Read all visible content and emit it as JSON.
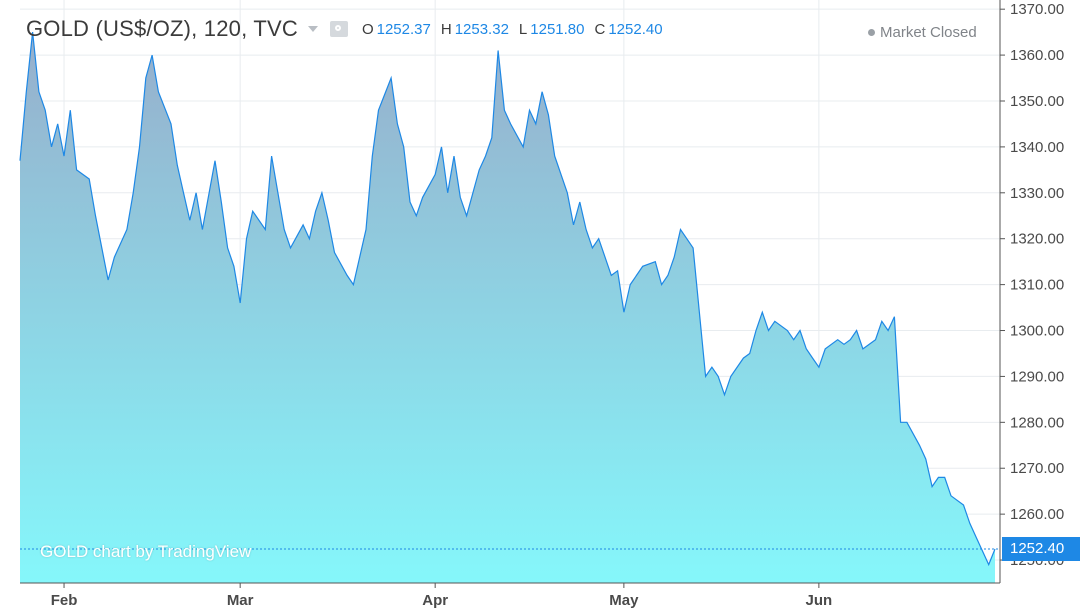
{
  "header": {
    "symbol": "GOLD (US$/OZ), 120, TVC",
    "ohlc": [
      {
        "key": "O",
        "value": "1252.37"
      },
      {
        "key": "H",
        "value": "1253.32"
      },
      {
        "key": "L",
        "value": "1251.80"
      },
      {
        "key": "C",
        "value": "1252.40"
      }
    ]
  },
  "status": "Market Closed",
  "watermark": "GOLD chart by TradingView",
  "last_price_label": "1252.40",
  "colors": {
    "line": "#1e88e5",
    "fill_top": "#97aecb",
    "fill_bottom": "#85f7fb",
    "badge": "#1e88e5"
  },
  "icons": [
    "caret-down-icon",
    "eye-icon",
    "status-dot-icon"
  ],
  "chart_data": {
    "type": "area",
    "x_unit": "date (2018)",
    "y_unit": "US$/oz",
    "ylim": [
      1245,
      1372
    ],
    "y_ticks": [
      1250,
      1260,
      1270,
      1280,
      1290,
      1300,
      1310,
      1320,
      1330,
      1340,
      1350,
      1360,
      1370
    ],
    "y_tick_labels": [
      "1250.00",
      "1260.00",
      "1270.00",
      "1280.00",
      "1290.00",
      "1300.00",
      "1310.00",
      "1320.00",
      "1330.00",
      "1340.00",
      "1350.00",
      "1360.00",
      "1370.00"
    ],
    "x_ticks": [
      {
        "label": "Feb",
        "date": "2018-02-01"
      },
      {
        "label": "Mar",
        "date": "2018-03-01"
      },
      {
        "label": "Apr",
        "date": "2018-04-01"
      },
      {
        "label": "May",
        "date": "2018-05-01"
      },
      {
        "label": "Jun",
        "date": "2018-06-01"
      }
    ],
    "xlim": [
      "2018-01-25",
      "2018-06-29"
    ],
    "last_value": 1252.4,
    "grid": true,
    "series": [
      {
        "points": [
          [
            "2018-01-25",
            1337
          ],
          [
            "2018-01-26",
            1352
          ],
          [
            "2018-01-27",
            1365
          ],
          [
            "2018-01-28",
            1352
          ],
          [
            "2018-01-29",
            1348
          ],
          [
            "2018-01-30",
            1340
          ],
          [
            "2018-01-31",
            1345
          ],
          [
            "2018-02-01",
            1338
          ],
          [
            "2018-02-02",
            1348
          ],
          [
            "2018-02-03",
            1335
          ],
          [
            "2018-02-05",
            1333
          ],
          [
            "2018-02-06",
            1325
          ],
          [
            "2018-02-07",
            1318
          ],
          [
            "2018-02-08",
            1311
          ],
          [
            "2018-02-09",
            1316
          ],
          [
            "2018-02-11",
            1322
          ],
          [
            "2018-02-12",
            1330
          ],
          [
            "2018-02-13",
            1340
          ],
          [
            "2018-02-14",
            1355
          ],
          [
            "2018-02-15",
            1360
          ],
          [
            "2018-02-16",
            1352
          ],
          [
            "2018-02-18",
            1345
          ],
          [
            "2018-02-19",
            1336
          ],
          [
            "2018-02-20",
            1330
          ],
          [
            "2018-02-21",
            1324
          ],
          [
            "2018-02-22",
            1330
          ],
          [
            "2018-02-23",
            1322
          ],
          [
            "2018-02-25",
            1337
          ],
          [
            "2018-02-26",
            1328
          ],
          [
            "2018-02-27",
            1318
          ],
          [
            "2018-02-28",
            1314
          ],
          [
            "2018-03-01",
            1306
          ],
          [
            "2018-03-02",
            1320
          ],
          [
            "2018-03-03",
            1326
          ],
          [
            "2018-03-05",
            1322
          ],
          [
            "2018-03-06",
            1338
          ],
          [
            "2018-03-07",
            1330
          ],
          [
            "2018-03-08",
            1322
          ],
          [
            "2018-03-09",
            1318
          ],
          [
            "2018-03-11",
            1323
          ],
          [
            "2018-03-12",
            1320
          ],
          [
            "2018-03-13",
            1326
          ],
          [
            "2018-03-14",
            1330
          ],
          [
            "2018-03-15",
            1324
          ],
          [
            "2018-03-16",
            1317
          ],
          [
            "2018-03-18",
            1312
          ],
          [
            "2018-03-19",
            1310
          ],
          [
            "2018-03-20",
            1316
          ],
          [
            "2018-03-21",
            1322
          ],
          [
            "2018-03-22",
            1338
          ],
          [
            "2018-03-23",
            1348
          ],
          [
            "2018-03-25",
            1355
          ],
          [
            "2018-03-26",
            1345
          ],
          [
            "2018-03-27",
            1340
          ],
          [
            "2018-03-28",
            1328
          ],
          [
            "2018-03-29",
            1325
          ],
          [
            "2018-03-30",
            1329
          ],
          [
            "2018-04-01",
            1334
          ],
          [
            "2018-04-02",
            1340
          ],
          [
            "2018-04-03",
            1330
          ],
          [
            "2018-04-04",
            1338
          ],
          [
            "2018-04-05",
            1329
          ],
          [
            "2018-04-06",
            1325
          ],
          [
            "2018-04-08",
            1335
          ],
          [
            "2018-04-09",
            1338
          ],
          [
            "2018-04-10",
            1342
          ],
          [
            "2018-04-11",
            1361
          ],
          [
            "2018-04-12",
            1348
          ],
          [
            "2018-04-13",
            1345
          ],
          [
            "2018-04-15",
            1340
          ],
          [
            "2018-04-16",
            1348
          ],
          [
            "2018-04-17",
            1345
          ],
          [
            "2018-04-18",
            1352
          ],
          [
            "2018-04-19",
            1347
          ],
          [
            "2018-04-20",
            1338
          ],
          [
            "2018-04-22",
            1330
          ],
          [
            "2018-04-23",
            1323
          ],
          [
            "2018-04-24",
            1328
          ],
          [
            "2018-04-25",
            1322
          ],
          [
            "2018-04-26",
            1318
          ],
          [
            "2018-04-27",
            1320
          ],
          [
            "2018-04-29",
            1312
          ],
          [
            "2018-04-30",
            1313
          ],
          [
            "2018-05-01",
            1304
          ],
          [
            "2018-05-02",
            1310
          ],
          [
            "2018-05-03",
            1312
          ],
          [
            "2018-05-04",
            1314
          ],
          [
            "2018-05-06",
            1315
          ],
          [
            "2018-05-07",
            1310
          ],
          [
            "2018-05-08",
            1312
          ],
          [
            "2018-05-09",
            1316
          ],
          [
            "2018-05-10",
            1322
          ],
          [
            "2018-05-11",
            1320
          ],
          [
            "2018-05-12",
            1318
          ],
          [
            "2018-05-14",
            1290
          ],
          [
            "2018-05-15",
            1292
          ],
          [
            "2018-05-16",
            1290
          ],
          [
            "2018-05-17",
            1286
          ],
          [
            "2018-05-18",
            1290
          ],
          [
            "2018-05-20",
            1294
          ],
          [
            "2018-05-21",
            1295
          ],
          [
            "2018-05-22",
            1300
          ],
          [
            "2018-05-23",
            1304
          ],
          [
            "2018-05-24",
            1300
          ],
          [
            "2018-05-25",
            1302
          ],
          [
            "2018-05-27",
            1300
          ],
          [
            "2018-05-28",
            1298
          ],
          [
            "2018-05-29",
            1300
          ],
          [
            "2018-05-30",
            1296
          ],
          [
            "2018-05-31",
            1294
          ],
          [
            "2018-06-01",
            1292
          ],
          [
            "2018-06-02",
            1296
          ],
          [
            "2018-06-04",
            1298
          ],
          [
            "2018-06-05",
            1297
          ],
          [
            "2018-06-06",
            1298
          ],
          [
            "2018-06-07",
            1300
          ],
          [
            "2018-06-08",
            1296
          ],
          [
            "2018-06-10",
            1298
          ],
          [
            "2018-06-11",
            1302
          ],
          [
            "2018-06-12",
            1300
          ],
          [
            "2018-06-13",
            1303
          ],
          [
            "2018-06-14",
            1280
          ],
          [
            "2018-06-15",
            1280
          ],
          [
            "2018-06-17",
            1275
          ],
          [
            "2018-06-18",
            1272
          ],
          [
            "2018-06-19",
            1266
          ],
          [
            "2018-06-20",
            1268
          ],
          [
            "2018-06-21",
            1268
          ],
          [
            "2018-06-22",
            1264
          ],
          [
            "2018-06-24",
            1262
          ],
          [
            "2018-06-25",
            1258
          ],
          [
            "2018-06-26",
            1255
          ],
          [
            "2018-06-27",
            1252
          ],
          [
            "2018-06-28",
            1249
          ],
          [
            "2018-06-29",
            1252.4
          ]
        ]
      }
    ]
  }
}
